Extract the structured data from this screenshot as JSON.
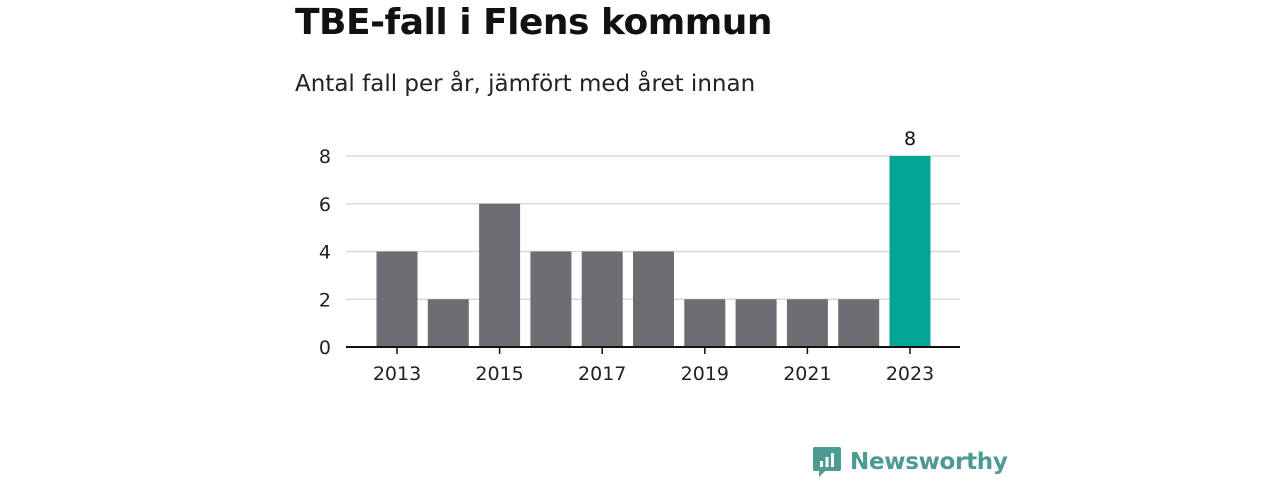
{
  "header": {
    "title": "TBE-fall i Flens kommun",
    "subtitle": "Antal fall per år, jämfört med året innan"
  },
  "colors": {
    "bar": "#6d6d72",
    "highlight": "#00a596",
    "grid": "#d9d9d9",
    "axis": "#111111",
    "brand": "#4c9a91"
  },
  "chart_data": {
    "type": "bar",
    "categories": [
      "2013",
      "2014",
      "2015",
      "2016",
      "2017",
      "2018",
      "2019",
      "2020",
      "2021",
      "2022",
      "2023"
    ],
    "values": [
      4,
      2,
      6,
      4,
      4,
      4,
      2,
      2,
      2,
      2,
      8
    ],
    "highlight_index": 10,
    "data_labels": [
      {
        "index": 10,
        "text": "8"
      }
    ],
    "x_tick_labels": [
      "2013",
      "2015",
      "2017",
      "2019",
      "2021",
      "2023"
    ],
    "y_ticks": [
      0,
      2,
      4,
      6,
      8
    ],
    "ylim": [
      0,
      8
    ],
    "xlabel": "",
    "ylabel": "",
    "grid": true
  },
  "footer": {
    "brand_name": "Newsworthy",
    "brand_icon": "newsworthy-logo-icon"
  }
}
